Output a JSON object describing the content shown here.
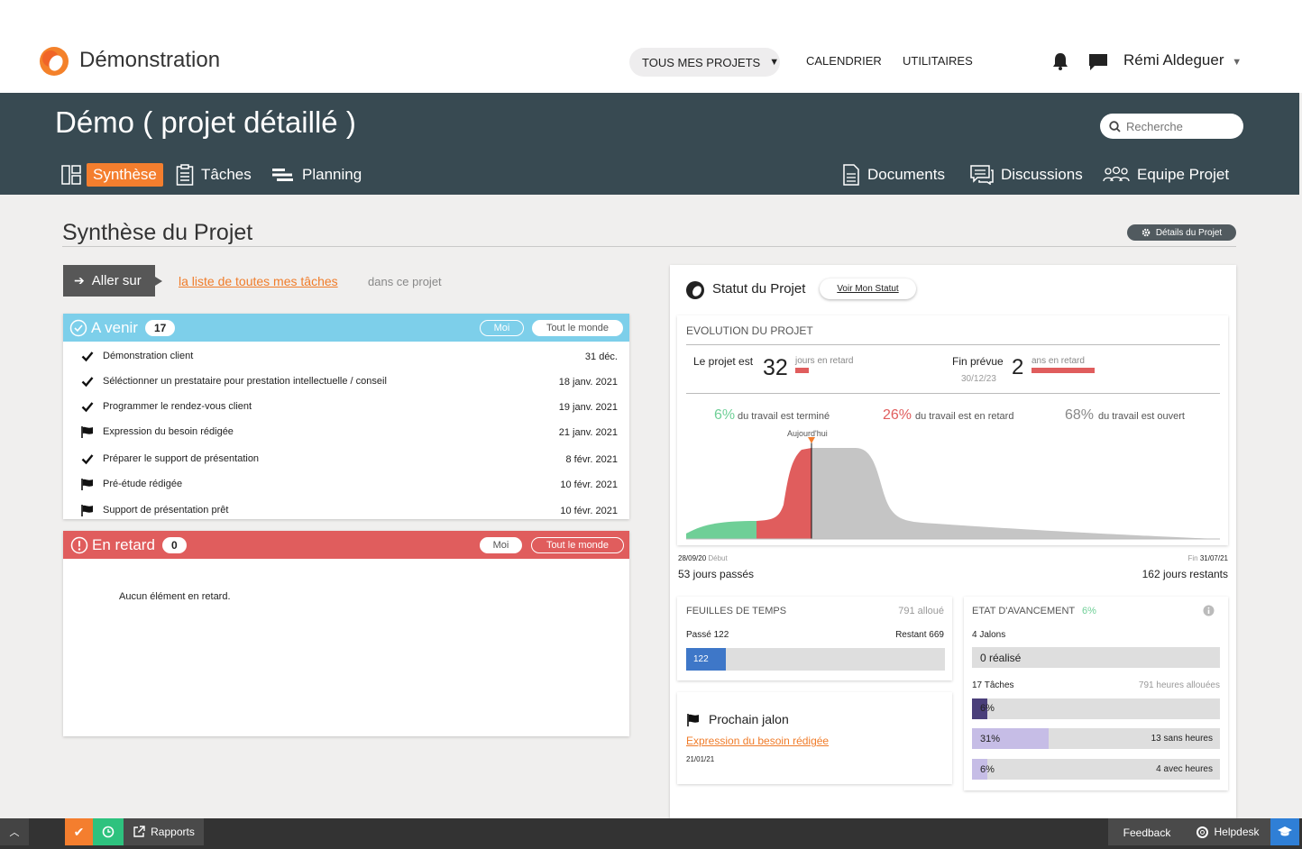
{
  "header": {
    "app_title": "Démonstration",
    "projects_label": "TOUS MES PROJETS",
    "calendar_label": "CALENDRIER",
    "utilities_label": "UTILITAIRES",
    "user_name": "Rémi Aldeguer"
  },
  "project": {
    "title": "Démo ( projet détaillé )",
    "search_placeholder": "Recherche",
    "tabs": {
      "synthese": "Synthèse",
      "taches": "Tâches",
      "planning": "Planning",
      "documents": "Documents",
      "discussions": "Discussions",
      "equipe": "Equipe Projet"
    }
  },
  "section": {
    "title": "Synthèse du Projet",
    "details_label": "Détails du Projet"
  },
  "goto": {
    "label": "Aller sur",
    "link": "la liste de toutes mes tâches",
    "suffix": "dans ce projet"
  },
  "upcoming": {
    "title": "A venir",
    "count": "17",
    "filter_me": "Moi",
    "filter_all": "Tout le monde",
    "tasks": [
      {
        "name": "Démonstration client",
        "date": "31 déc.",
        "kind": "check"
      },
      {
        "name": "Séléctionner un prestataire pour prestation intellectuelle / conseil",
        "date": "18 janv. 2021",
        "kind": "check"
      },
      {
        "name": "Programmer le rendez-vous client",
        "date": "19 janv. 2021",
        "kind": "check"
      },
      {
        "name": "Expression du besoin rédigée",
        "date": "21 janv. 2021",
        "kind": "flag"
      },
      {
        "name": "Préparer le support de présentation",
        "date": "8 févr. 2021",
        "kind": "check"
      },
      {
        "name": "Pré-étude rédigée",
        "date": "10 févr. 2021",
        "kind": "flag"
      },
      {
        "name": "Support de présentation prêt",
        "date": "10 févr. 2021",
        "kind": "flag"
      }
    ]
  },
  "late": {
    "title": "En retard",
    "count": "0",
    "filter_me": "Moi",
    "filter_all": "Tout le monde",
    "empty": "Aucun élément en retard."
  },
  "status": {
    "title": "Statut du Projet",
    "voir_label": "Voir Mon Statut",
    "evolution_title": "EVOLUTION DU PROJET",
    "late_prefix": "Le projet est",
    "late_value": "32",
    "late_unit": "jours en retard",
    "end_prefix": "Fin prévue",
    "end_value": "2",
    "end_unit": "ans en retard",
    "end_date": "30/12/23",
    "done_pct": "6%",
    "done_txt": "du travail est terminé",
    "late_pct": "26%",
    "late_txt": "du travail est en retard",
    "open_pct": "68%",
    "open_txt": "du travail est ouvert",
    "today_label": "Aujourd'hui",
    "start_date": "28/09/20",
    "start_label": "Début",
    "end_label": "Fin",
    "end_plan_date": "31/07/21",
    "days_past": "53 jours passés",
    "days_left": "162 jours restants"
  },
  "timesheets": {
    "title": "FEUILLES DE TEMPS",
    "allocated": "791 alloué",
    "past_label": "Passé 122",
    "remaining_label": "Restant 669",
    "bar_value": "122",
    "bar_fraction": 0.154
  },
  "milestone": {
    "title": "Prochain jalon",
    "name": "Expression du besoin rédigée",
    "date": "21/01/21"
  },
  "progress": {
    "title": "ETAT D'AVANCEMENT",
    "pct": "6%",
    "milestones_label": "4 Jalons",
    "milestones_done": "0 réalisé",
    "tasks_label": "17 Tâches",
    "hours_label": "791 heures allouées",
    "bar1_pct": "6%",
    "bar1_fraction": 0.06,
    "bar2_pct": "31%",
    "bar2_fraction": 0.31,
    "bar2_label": "13 sans heures",
    "bar3_pct": "6%",
    "bar3_fraction": 0.06,
    "bar3_label": "4 avec heures"
  },
  "footer": {
    "reports": "Rapports",
    "feedback": "Feedback",
    "helpdesk": "Helpdesk"
  },
  "colors": {
    "accent": "#f47e2e",
    "dark_bar": "#384a52",
    "upcoming": "#7dcfea",
    "late": "#e05d5d",
    "done": "#6fcf97"
  }
}
